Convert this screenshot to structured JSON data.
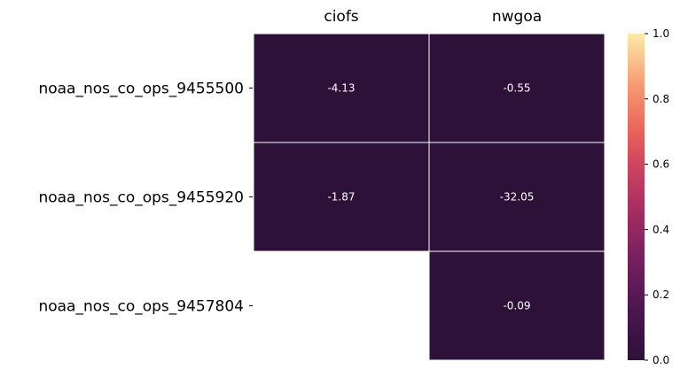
{
  "chart_data": {
    "type": "heatmap",
    "columns": [
      "ciofs",
      "nwgoa"
    ],
    "rows": [
      "noaa_nos_co_ops_9455500",
      "noaa_nos_co_ops_9455920",
      "noaa_nos_co_ops_9457804"
    ],
    "values": [
      [
        -4.13,
        -0.55
      ],
      [
        -1.87,
        -32.05
      ],
      [
        null,
        -0.09
      ]
    ],
    "cell_labels": [
      [
        "-4.13",
        "-0.55"
      ],
      [
        "-1.87",
        "-32.05"
      ],
      [
        null,
        "-0.09"
      ]
    ],
    "colorbar": {
      "range": [
        0,
        1
      ],
      "ticks": [
        "0.0",
        "0.2",
        "0.4",
        "0.6",
        "0.8",
        "1.0"
      ],
      "colormap": "magma",
      "low_color": "#2d1139",
      "high_color": "#fcebaa"
    },
    "column_labels_position": "top",
    "grid_color": "#ffffff"
  }
}
